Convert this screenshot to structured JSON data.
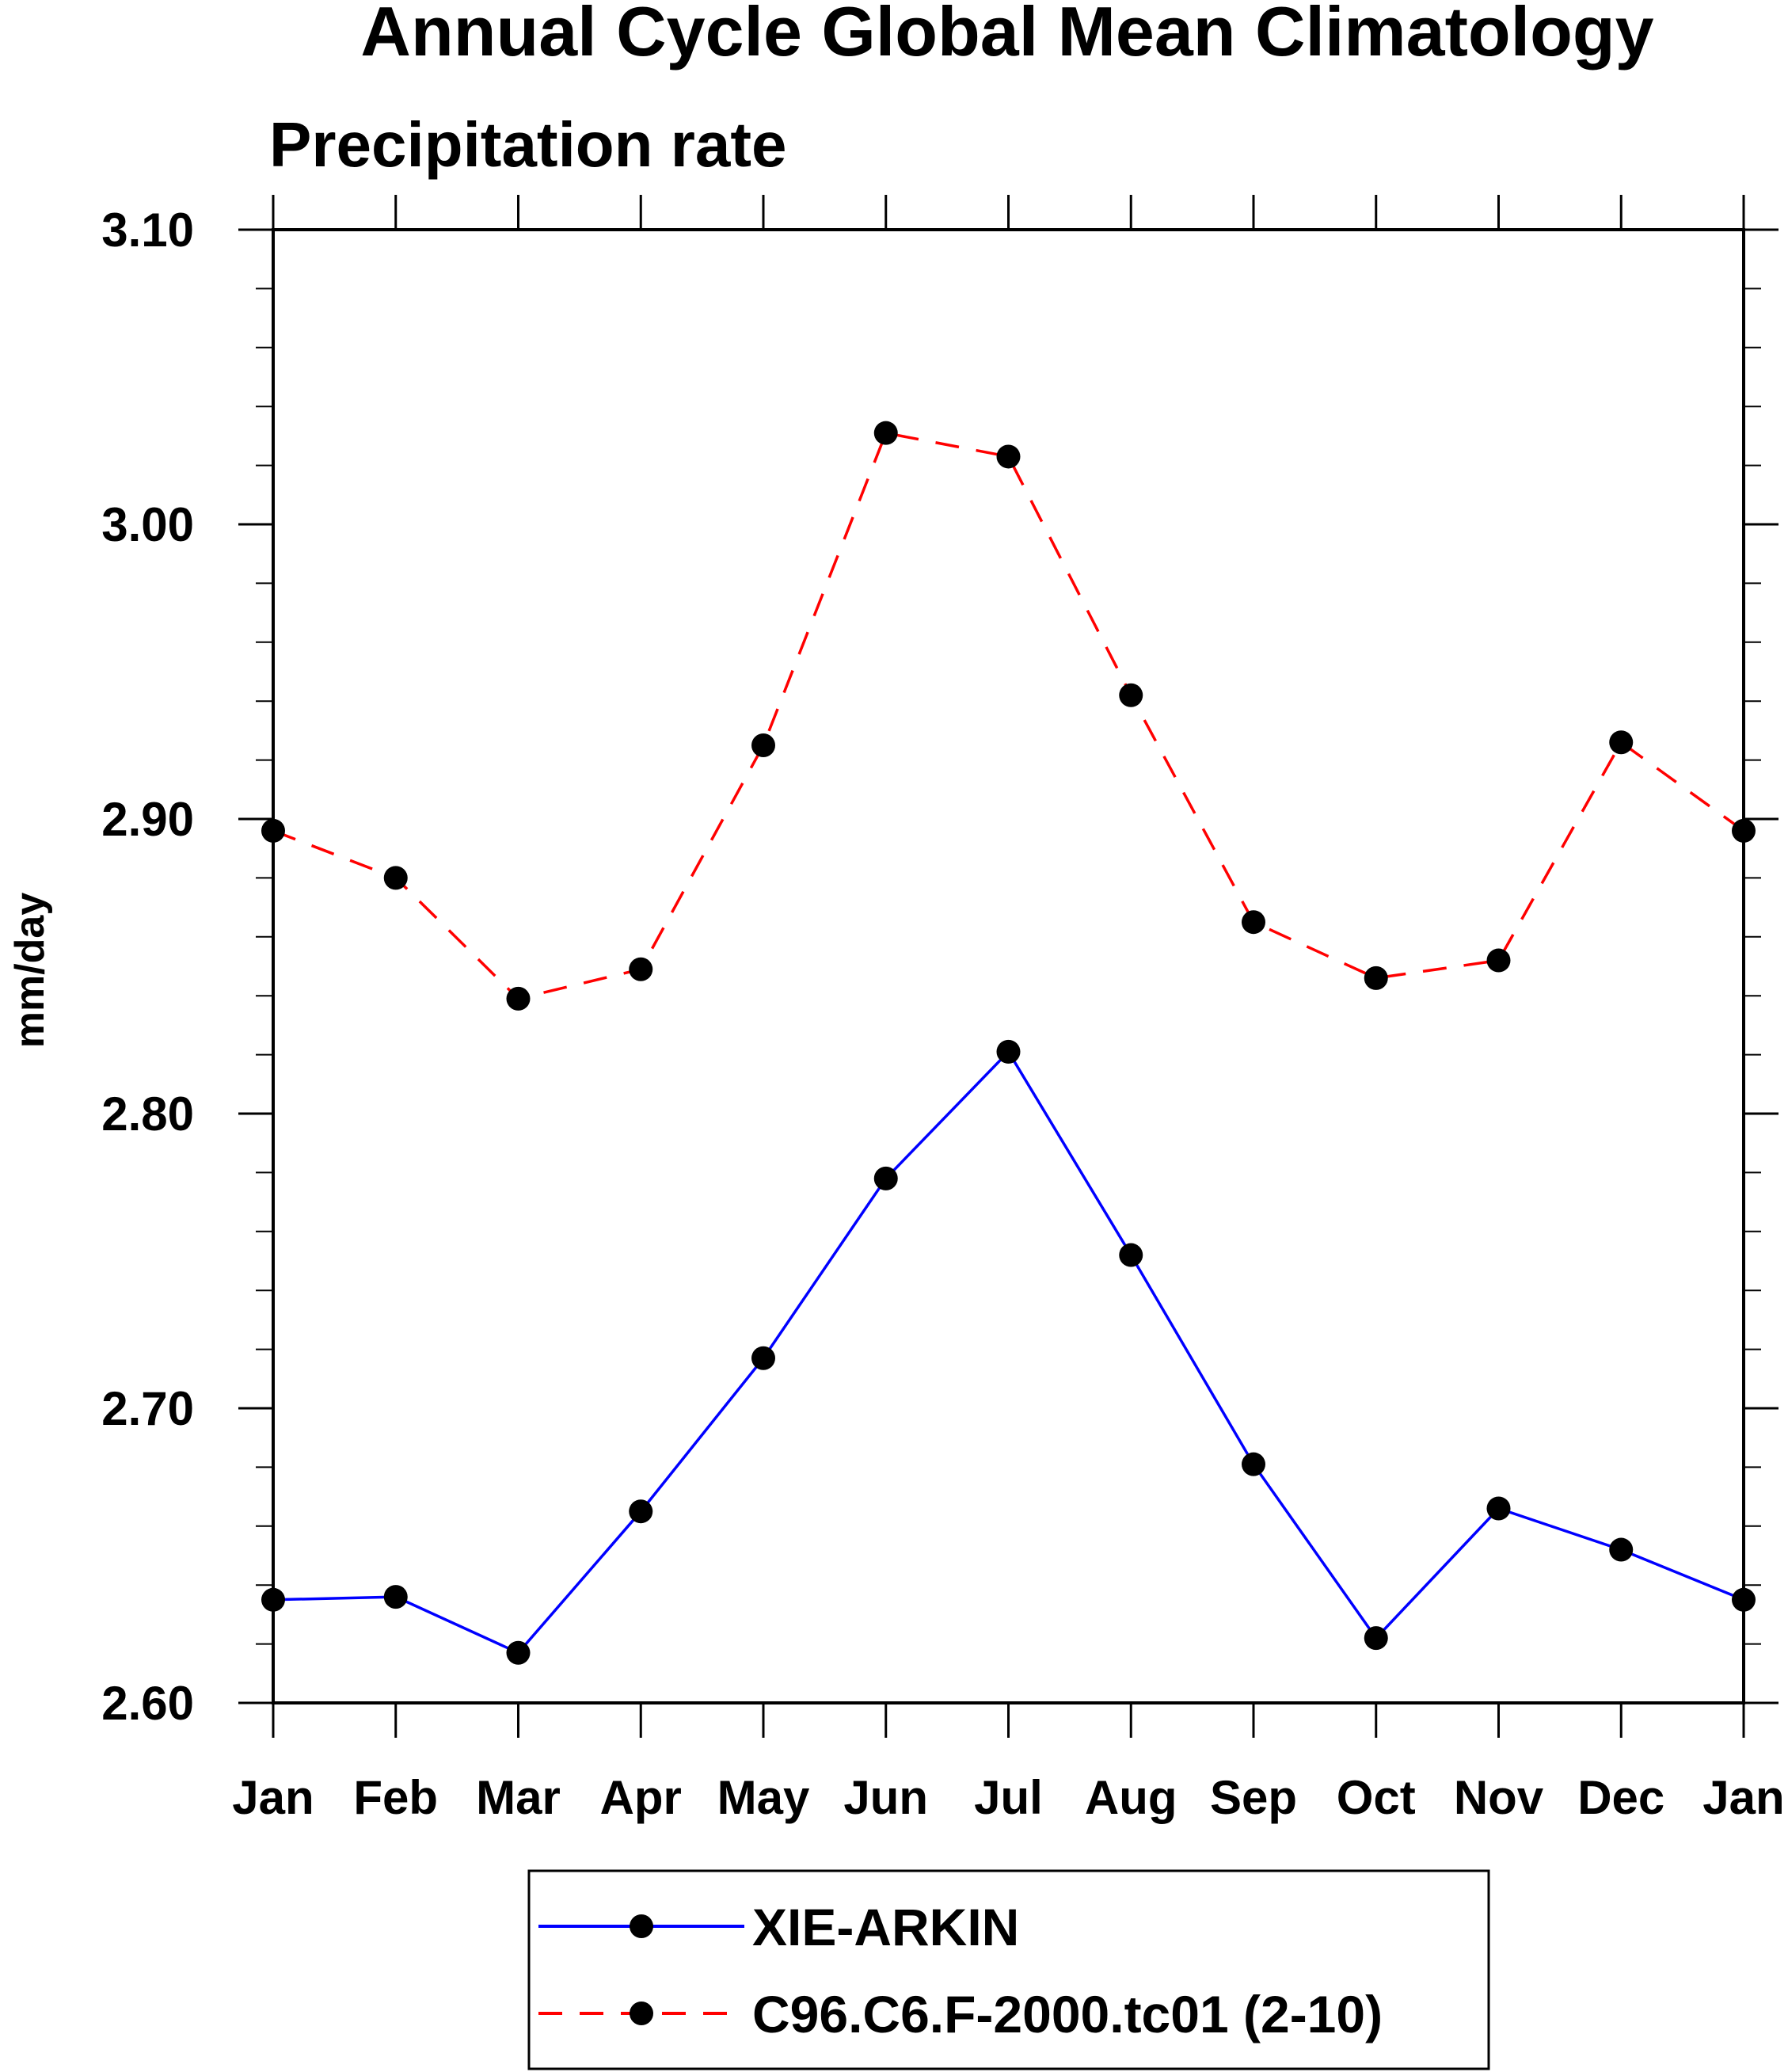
{
  "chart_data": {
    "type": "line",
    "title": "Annual Cycle Global Mean Climatology",
    "subtitle": "Precipitation rate",
    "ylabel": "mm/day",
    "xlabel": "",
    "categories": [
      "Jan",
      "Feb",
      "Mar",
      "Apr",
      "May",
      "Jun",
      "Jul",
      "Aug",
      "Sep",
      "Oct",
      "Nov",
      "Dec",
      "Jan"
    ],
    "ylim": [
      2.6,
      3.1
    ],
    "yticks": [
      "2.60",
      "2.70",
      "2.80",
      "2.90",
      "3.00",
      "3.10"
    ],
    "grid": false,
    "legend_position": "bottom-center",
    "series": [
      {
        "name": "XIE-ARKIN",
        "color": "#0000ff",
        "line_style": "solid",
        "marker": "filled-circle",
        "values": [
          2.635,
          2.636,
          2.617,
          2.665,
          2.717,
          2.778,
          2.821,
          2.752,
          2.681,
          2.622,
          2.666,
          2.652,
          2.635
        ]
      },
      {
        "name": "C96.C6.F-2000.tc01 (2-10)",
        "color": "#ff0000",
        "line_style": "dashed",
        "marker": "filled-circle",
        "values": [
          2.896,
          2.88,
          2.839,
          2.849,
          2.925,
          3.031,
          3.023,
          2.942,
          2.865,
          2.846,
          2.852,
          2.926,
          2.896
        ]
      }
    ]
  }
}
